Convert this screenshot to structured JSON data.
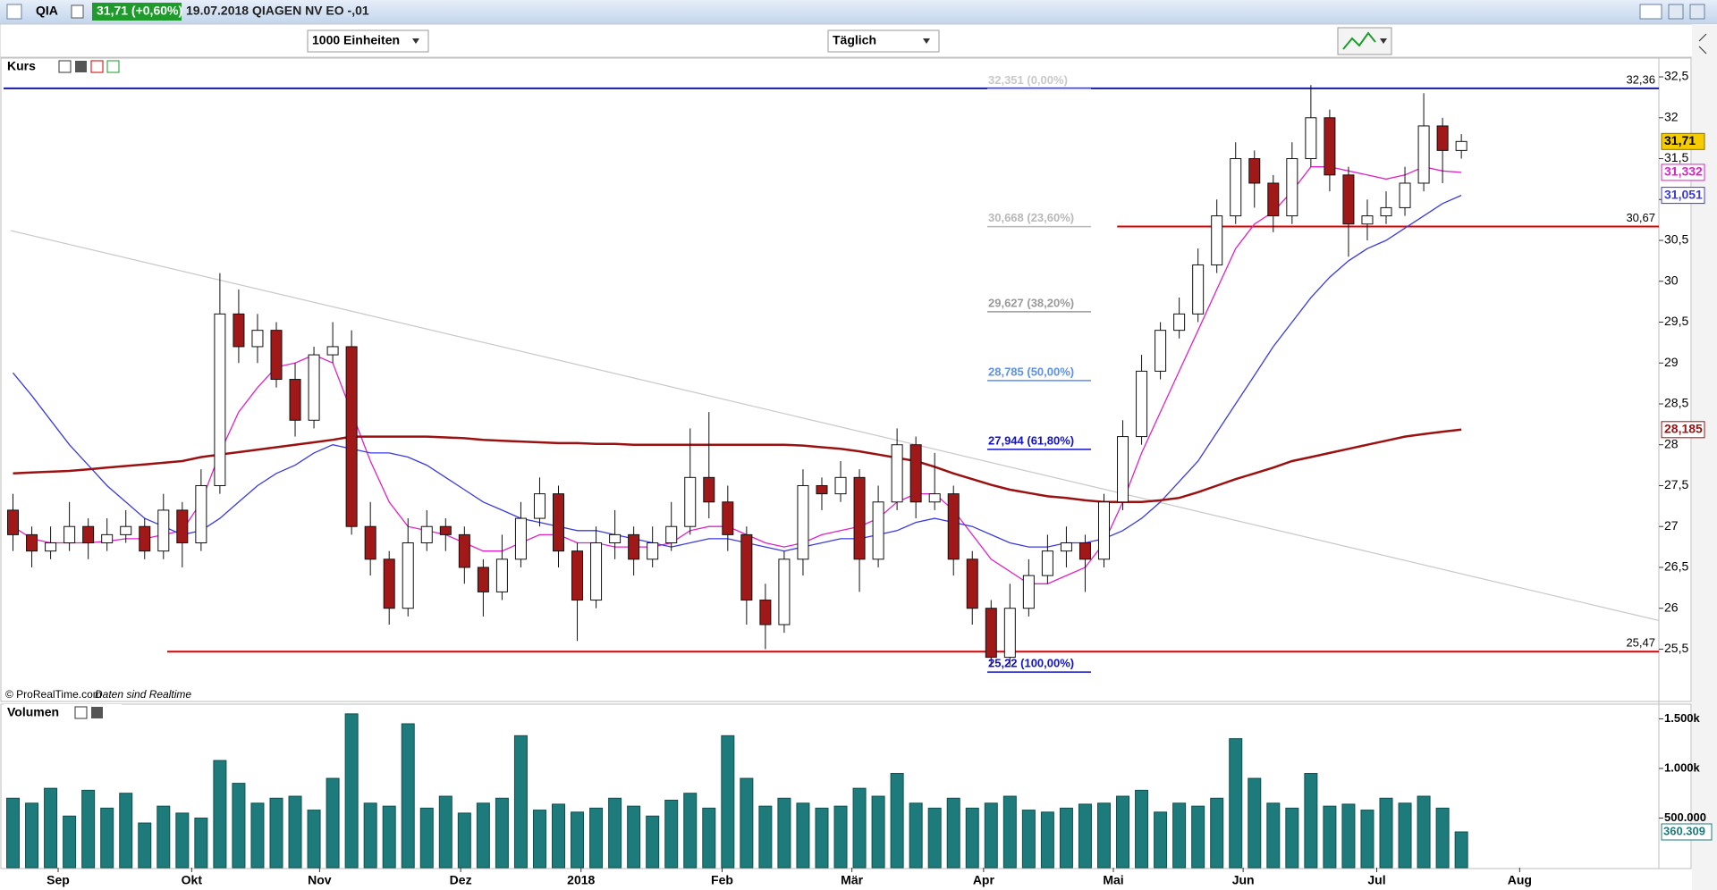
{
  "window": {
    "symbol": "QIA",
    "quote": "31,71 (+0,60%)",
    "caption": "19.07.2018 QIAGEN NV EO -,01"
  },
  "toolbar": {
    "quantity": "1000 Einheiten",
    "period": "Täglich"
  },
  "footer": {
    "copyright": "© ProRealTime.com",
    "note": "Daten sind Realtime"
  },
  "chart_data": [
    {
      "type": "candlestick",
      "title": "Kurs",
      "open": [
        27.2,
        26.9,
        26.7,
        26.8,
        27.0,
        26.8,
        26.9,
        27.0,
        26.7,
        27.2,
        26.8,
        27.5,
        29.6,
        29.2,
        29.4,
        28.8,
        28.3,
        29.1,
        29.2,
        27.0,
        26.6,
        26.0,
        26.8,
        27.0,
        26.9,
        26.5,
        26.2,
        26.6,
        27.1,
        27.4,
        26.7,
        26.1,
        26.8,
        26.9,
        26.6,
        26.8,
        27.0,
        27.6,
        27.3,
        26.9,
        26.1,
        25.8,
        26.6,
        27.5,
        27.4,
        27.6,
        26.6,
        27.3,
        28.0,
        27.3,
        27.4,
        26.6,
        26.0,
        25.4,
        26.0,
        26.4,
        26.7,
        26.8,
        26.6,
        27.3,
        28.1,
        28.9,
        29.4,
        29.6,
        30.2,
        30.8,
        31.5,
        31.2,
        30.8,
        31.5,
        32.0,
        31.3,
        30.7,
        30.8,
        30.9,
        31.2,
        31.9,
        31.6
      ],
      "high": [
        27.4,
        27.0,
        27.0,
        27.3,
        27.1,
        27.1,
        27.2,
        27.1,
        27.4,
        27.3,
        27.7,
        30.1,
        29.9,
        29.6,
        29.5,
        29.0,
        29.2,
        29.5,
        29.4,
        27.3,
        26.7,
        27.1,
        27.2,
        27.1,
        27.0,
        26.6,
        26.9,
        27.3,
        27.6,
        27.5,
        26.8,
        27.0,
        27.2,
        27.0,
        27.0,
        27.3,
        28.2,
        28.4,
        27.5,
        27.0,
        26.3,
        26.7,
        27.7,
        27.6,
        27.8,
        27.7,
        27.5,
        28.2,
        28.1,
        27.9,
        27.5,
        26.7,
        26.1,
        26.3,
        26.6,
        26.9,
        27.0,
        26.9,
        27.4,
        28.3,
        29.1,
        29.5,
        29.8,
        30.4,
        31.0,
        31.7,
        31.6,
        31.3,
        31.7,
        32.4,
        32.1,
        31.4,
        31.0,
        31.1,
        31.4,
        32.3,
        32.0,
        31.8
      ],
      "low": [
        26.7,
        26.5,
        26.6,
        26.7,
        26.6,
        26.7,
        26.8,
        26.6,
        26.6,
        26.5,
        26.7,
        27.4,
        29.0,
        29.0,
        28.7,
        28.1,
        28.2,
        29.0,
        26.9,
        26.4,
        25.8,
        25.9,
        26.7,
        26.7,
        26.3,
        25.9,
        26.1,
        26.5,
        27.0,
        26.5,
        25.6,
        26.0,
        26.6,
        26.4,
        26.5,
        26.7,
        26.9,
        27.1,
        26.7,
        25.8,
        25.5,
        25.7,
        26.4,
        27.2,
        27.3,
        26.2,
        26.5,
        27.2,
        27.1,
        27.2,
        26.4,
        25.8,
        25.3,
        25.3,
        25.9,
        26.3,
        26.5,
        26.2,
        26.5,
        27.2,
        28.0,
        28.8,
        29.3,
        29.5,
        30.1,
        30.7,
        30.9,
        30.6,
        30.7,
        31.4,
        31.1,
        30.3,
        30.5,
        30.7,
        30.8,
        31.1,
        31.2,
        31.5
      ],
      "close": [
        26.9,
        26.7,
        26.8,
        27.0,
        26.8,
        26.9,
        27.0,
        26.7,
        27.2,
        26.8,
        27.5,
        29.6,
        29.2,
        29.4,
        28.8,
        28.3,
        29.1,
        29.2,
        27.0,
        26.6,
        26.0,
        26.8,
        27.0,
        26.9,
        26.5,
        26.2,
        26.6,
        27.1,
        27.4,
        26.7,
        26.1,
        26.8,
        26.9,
        26.6,
        26.8,
        27.0,
        27.6,
        27.3,
        26.9,
        26.1,
        25.8,
        26.6,
        27.5,
        27.4,
        27.6,
        26.6,
        27.3,
        28.0,
        27.3,
        27.4,
        26.6,
        26.0,
        25.4,
        26.0,
        26.4,
        26.7,
        26.8,
        26.6,
        27.3,
        28.1,
        28.9,
        29.4,
        29.6,
        30.2,
        30.8,
        31.5,
        31.2,
        30.8,
        31.5,
        32.0,
        31.3,
        30.7,
        30.8,
        30.9,
        31.2,
        31.9,
        31.6,
        31.71
      ],
      "up_color": "#ffffff",
      "down_color": "#a01818",
      "last_label": {
        "value": 31.71,
        "label": "31,71",
        "color": "#f5cc00"
      },
      "series": [
        {
          "color": "#e020c8",
          "values": [
            27.0,
            26.85,
            26.8,
            26.8,
            26.8,
            26.82,
            26.85,
            26.85,
            26.9,
            26.95,
            27.3,
            27.9,
            28.4,
            28.7,
            28.95,
            29.0,
            29.1,
            29.0,
            28.4,
            27.8,
            27.3,
            27.0,
            26.95,
            26.9,
            26.8,
            26.7,
            26.7,
            26.8,
            26.9,
            26.9,
            26.8,
            26.8,
            26.75,
            26.75,
            26.75,
            26.8,
            26.95,
            27.0,
            27.0,
            26.9,
            26.8,
            26.75,
            26.8,
            26.9,
            26.95,
            27.0,
            27.1,
            27.3,
            27.4,
            27.4,
            27.2,
            26.9,
            26.6,
            26.45,
            26.3,
            26.3,
            26.4,
            26.5,
            26.8,
            27.3,
            27.9,
            28.4,
            28.9,
            29.4,
            29.9,
            30.4,
            30.7,
            30.85,
            31.1,
            31.4,
            31.4,
            31.35,
            31.3,
            31.25,
            31.3,
            31.4,
            31.35,
            31.332
          ],
          "last_label": {
            "value": 31.332,
            "label": "31,332"
          }
        },
        {
          "color": "#3a3ae0",
          "values": [
            28.88,
            28.6,
            28.3,
            28.0,
            27.75,
            27.5,
            27.3,
            27.1,
            27.0,
            26.9,
            26.95,
            27.1,
            27.3,
            27.5,
            27.65,
            27.75,
            27.9,
            28.0,
            27.95,
            27.9,
            27.9,
            27.85,
            27.75,
            27.6,
            27.45,
            27.3,
            27.2,
            27.1,
            27.05,
            27.0,
            26.95,
            26.95,
            26.9,
            26.85,
            26.8,
            26.75,
            26.8,
            26.85,
            26.85,
            26.8,
            26.75,
            26.7,
            26.75,
            26.8,
            26.85,
            26.85,
            26.9,
            26.95,
            27.05,
            27.1,
            27.05,
            27.0,
            26.9,
            26.8,
            26.75,
            26.75,
            26.8,
            26.8,
            26.85,
            26.95,
            27.1,
            27.3,
            27.55,
            27.8,
            28.15,
            28.5,
            28.85,
            29.2,
            29.5,
            29.8,
            30.05,
            30.25,
            30.4,
            30.5,
            30.65,
            30.8,
            30.95,
            31.051
          ],
          "last_label": {
            "value": 31.051,
            "label": "31,051"
          }
        },
        {
          "color": "#9b1010",
          "values": [
            27.65,
            27.66,
            27.67,
            27.68,
            27.7,
            27.72,
            27.74,
            27.76,
            27.78,
            27.8,
            27.85,
            27.88,
            27.91,
            27.94,
            27.97,
            28.0,
            28.03,
            28.06,
            28.1,
            28.1,
            28.1,
            28.1,
            28.1,
            28.09,
            28.08,
            28.06,
            28.05,
            28.04,
            28.03,
            28.02,
            28.02,
            28.01,
            28.01,
            28.0,
            28.0,
            28.0,
            28.0,
            28.0,
            28.0,
            28.0,
            28.0,
            28.0,
            27.99,
            27.97,
            27.95,
            27.92,
            27.88,
            27.84,
            27.8,
            27.73,
            27.65,
            27.58,
            27.51,
            27.45,
            27.41,
            27.37,
            27.35,
            27.32,
            27.3,
            27.3,
            27.3,
            27.32,
            27.35,
            27.42,
            27.5,
            27.58,
            27.65,
            27.72,
            27.8,
            27.85,
            27.9,
            27.95,
            28.0,
            28.05,
            28.1,
            28.13,
            28.16,
            28.185
          ],
          "last_label": {
            "value": 28.185,
            "label": "28,185"
          }
        }
      ],
      "hlines": [
        {
          "value": 32.36,
          "label": "32,36",
          "color": "#1a1aa0",
          "x0": -0.5
        },
        {
          "value": 30.67,
          "label": "30,67",
          "color": "#e00000",
          "x0": 58.7
        },
        {
          "value": 25.47,
          "label": "25,47",
          "color": "#e00000",
          "x0": 8.2
        }
      ],
      "fibonacci": [
        {
          "value": 32.351,
          "label": "32,351 (0,00%)",
          "color": "#c8c8c8"
        },
        {
          "value": 30.668,
          "label": "30,668 (23,60%)",
          "color": "#b8b8b8"
        },
        {
          "value": 29.627,
          "label": "29,627 (38,20%)",
          "color": "#9a9a9a"
        },
        {
          "value": 28.785,
          "label": "28,785 (50,00%)",
          "color": "#5b8ff0"
        },
        {
          "value": 27.944,
          "label": "27,944 (61,80%)",
          "color": "#1212c8"
        },
        {
          "value": 25.22,
          "label": "25,22 (100,00%)",
          "color": "#1212c8"
        }
      ],
      "trendline": {
        "x": [
          -0.12,
          87.5
        ],
        "y": [
          30.62,
          25.85
        ],
        "color": "#c8c8c8"
      },
      "xlim": [
        -0.5,
        87.5
      ],
      "ylim": [
        24.86,
        32.73
      ],
      "yticks": [
        {
          "value": 25.5,
          "label": "25,5"
        },
        26,
        {
          "value": 26.5,
          "label": "26,5"
        },
        27,
        {
          "value": 27.5,
          "label": "27,5"
        },
        28,
        {
          "value": 28.5,
          "label": "28,5"
        },
        29,
        {
          "value": 29.5,
          "label": "29,5"
        },
        30,
        {
          "value": 30.5,
          "label": "30,5"
        },
        31,
        {
          "value": 31.5,
          "label": "31,5"
        },
        32,
        {
          "value": 32.5,
          "label": "32,5"
        }
      ]
    },
    {
      "type": "bar",
      "title": "Volumen",
      "color": "#1e7b7b",
      "values": [
        700000,
        650000,
        800000,
        520000,
        780000,
        600000,
        750000,
        450000,
        620000,
        550000,
        500000,
        1080000,
        850000,
        650000,
        700000,
        720000,
        580000,
        900000,
        1550000,
        650000,
        620000,
        1450000,
        600000,
        720000,
        550000,
        650000,
        700000,
        1330000,
        580000,
        640000,
        560000,
        600000,
        700000,
        620000,
        520000,
        680000,
        750000,
        600000,
        1330000,
        900000,
        620000,
        700000,
        650000,
        600000,
        620000,
        800000,
        720000,
        950000,
        650000,
        600000,
        700000,
        600000,
        650000,
        720000,
        580000,
        560000,
        600000,
        640000,
        650000,
        720000,
        780000,
        560000,
        650000,
        620000,
        700000,
        1300000,
        900000,
        650000,
        600000,
        950000,
        620000,
        640000,
        580000,
        700000,
        650000,
        720000,
        600000,
        360309
      ],
      "last_label": {
        "value": 360309,
        "label": "360.309"
      },
      "xlim": [
        -0.5,
        87.5
      ],
      "ylim": [
        0,
        1630000
      ],
      "yticks": [
        {
          "value": 500000,
          "label": "500.000"
        },
        {
          "value": 1000000,
          "label": "1.000k"
        },
        {
          "value": 1500000,
          "label": "1.500k"
        }
      ],
      "xticks": [
        {
          "value": 2.4,
          "label": "Sep"
        },
        {
          "value": 9.5,
          "label": "Okt"
        },
        {
          "value": 16.3,
          "label": "Nov"
        },
        {
          "value": 23.8,
          "label": "Dez"
        },
        {
          "value": 30.2,
          "label": "2018"
        },
        {
          "value": 37.7,
          "label": "Feb"
        },
        {
          "value": 44.6,
          "label": "Mär"
        },
        {
          "value": 51.6,
          "label": "Apr"
        },
        {
          "value": 58.5,
          "label": "Mai"
        },
        {
          "value": 65.4,
          "label": "Jun"
        },
        {
          "value": 72.5,
          "label": "Jul"
        },
        {
          "value": 80.1,
          "label": "Aug"
        }
      ]
    }
  ]
}
